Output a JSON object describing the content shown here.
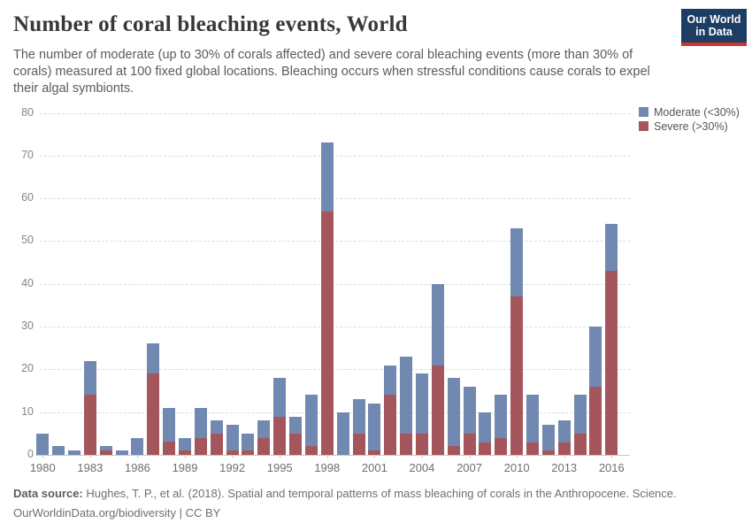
{
  "header": {
    "title": "Number of coral bleaching events, World",
    "subtitle": "The number of moderate (up to 30% of corals affected) and severe coral bleaching events (more than 30% of corals) measured at 100 fixed global locations. Bleaching occurs when stressful conditions cause corals to expel their algal symbionts.",
    "logo": {
      "line1": "Our World",
      "line2": "in Data"
    }
  },
  "legend": {
    "items": [
      {
        "label": "Moderate (<30%)",
        "color": "#7189b0"
      },
      {
        "label": "Severe (>30%)",
        "color": "#a4565c"
      }
    ]
  },
  "chart_data": {
    "type": "bar",
    "stacked": true,
    "title": "Number of coral bleaching events, World",
    "xlabel": "",
    "ylabel": "",
    "ylim": [
      0,
      80
    ],
    "ytick_step": 10,
    "grid": "horizontal-dashed",
    "legend_position": "top-right",
    "x": [
      1980,
      1981,
      1982,
      1983,
      1984,
      1985,
      1986,
      1987,
      1988,
      1989,
      1990,
      1991,
      1992,
      1993,
      1994,
      1995,
      1996,
      1997,
      1998,
      1999,
      2000,
      2001,
      2002,
      2003,
      2004,
      2005,
      2006,
      2007,
      2008,
      2009,
      2010,
      2011,
      2012,
      2013,
      2014,
      2015,
      2016
    ],
    "xticks": [
      1980,
      1983,
      1986,
      1989,
      1992,
      1995,
      1998,
      2001,
      2004,
      2007,
      2010,
      2013,
      2016
    ],
    "series": [
      {
        "name": "Severe (>30%)",
        "color": "#a4565c",
        "values": [
          0,
          0,
          0,
          14,
          1,
          0,
          0,
          19,
          3,
          1,
          4,
          5,
          1,
          1,
          4,
          9,
          5,
          2,
          57,
          0,
          5,
          1,
          14,
          5,
          5,
          21,
          2,
          5,
          3,
          4,
          37,
          3,
          1,
          3,
          5,
          16,
          43
        ]
      },
      {
        "name": "Moderate (<30%)",
        "color": "#7189b0",
        "values": [
          5,
          2,
          1,
          8,
          1,
          1,
          4,
          7,
          8,
          3,
          7,
          3,
          6,
          4,
          4,
          9,
          4,
          12,
          16,
          10,
          8,
          11,
          7,
          18,
          14,
          19,
          16,
          11,
          7,
          10,
          16,
          11,
          6,
          5,
          9,
          14,
          11
        ]
      }
    ]
  },
  "footer": {
    "source_label": "Data source:",
    "source_text": " Hughes, T. P., et al. (2018). Spatial and temporal patterns of mass bleaching of corals in the Anthropocene. Science.",
    "citation": "OurWorldinData.org/biodiversity | CC BY"
  }
}
